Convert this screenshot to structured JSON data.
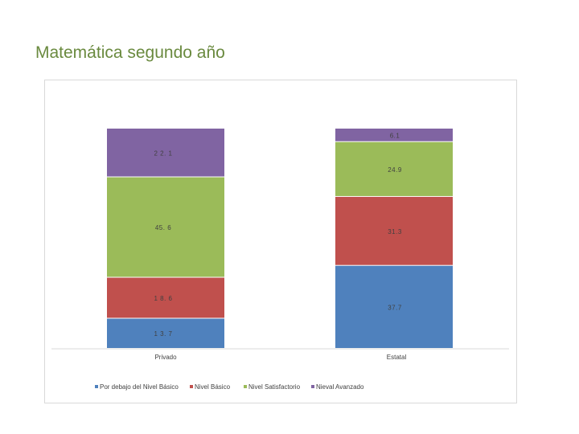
{
  "slide": {
    "title": "Matemática segundo año"
  },
  "chart_data": {
    "type": "bar",
    "stacked": true,
    "categories": [
      "Privado",
      "Estatal"
    ],
    "series": [
      {
        "name": "Por debajo del Nivel Básico",
        "color": "#4f81bd",
        "values": [
          13.7,
          37.7
        ],
        "labels": [
          "1 3. 7",
          "37.7"
        ]
      },
      {
        "name": "Nivel Básico",
        "color": "#c0504d",
        "values": [
          18.6,
          31.3
        ],
        "labels": [
          "1 8. 6",
          "31.3"
        ]
      },
      {
        "name": "Nivel Satisfactorio",
        "color": "#9bbb59",
        "values": [
          45.6,
          24.9
        ],
        "labels": [
          "45. 6",
          "24.9"
        ]
      },
      {
        "name": "Nieval Avanzado",
        "color": "#8064a2",
        "values": [
          22.1,
          6.1
        ],
        "labels": [
          "2 2. 1",
          "6.1"
        ]
      }
    ],
    "ylim": [
      0,
      100
    ],
    "legend": "bottom",
    "grid": false
  }
}
